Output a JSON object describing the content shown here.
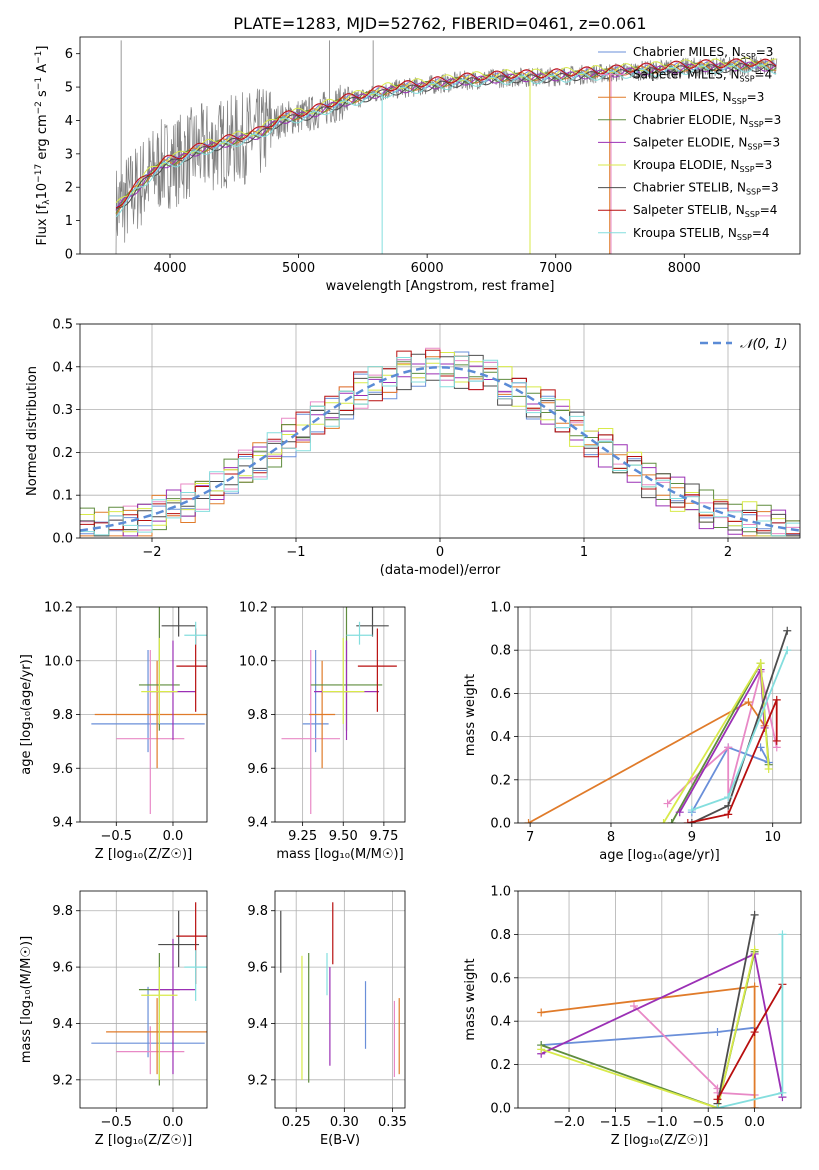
{
  "figure_title": "PLATE=1283, MJD=52762, FIBERID=0461, z=0.061",
  "models": [
    {
      "name": "Chabrier MILES",
      "n": "3",
      "color": "#6a8fd9"
    },
    {
      "name": "Salpeter MILES",
      "n": "4",
      "color": "#e889c6"
    },
    {
      "name": "Kroupa MILES",
      "n": "3",
      "color": "#e07b2a"
    },
    {
      "name": "Chabrier ELODIE",
      "n": "3",
      "color": "#5f8c3e"
    },
    {
      "name": "Salpeter ELODIE",
      "n": "3",
      "color": "#9b30b5"
    },
    {
      "name": "Kroupa ELODIE",
      "n": "3",
      "color": "#d8ea4a"
    },
    {
      "name": "Chabrier STELIB",
      "n": "3",
      "color": "#4d4d4d"
    },
    {
      "name": "Salpeter STELIB",
      "n": "4",
      "color": "#b80f0f"
    },
    {
      "name": "Kroupa STELIB",
      "n": "4",
      "color": "#84dede"
    }
  ],
  "legend_n_prefix": ", N",
  "legend_n_sub": "SSP",
  "legend_n_eq": "=",
  "gaussian_label": "𝒩(0, 1)",
  "chart_data": [
    {
      "id": "spectrum",
      "type": "line",
      "xlabel": "wavelength [Angstrom, rest frame]",
      "ylabel_parts": [
        "Flux [f",
        "λ",
        "10",
        "−17",
        " erg cm",
        "−2",
        " s",
        "−1",
        " A",
        "−1",
        "]"
      ],
      "xlim": [
        3300,
        8900
      ],
      "ylim": [
        0,
        6.5
      ],
      "xticks": [
        4000,
        5000,
        6000,
        7000,
        8000
      ],
      "yticks": [
        0,
        1,
        2,
        3,
        4,
        5,
        6
      ],
      "data_continuum": {
        "x": [
          3580,
          3650,
          3750,
          3850,
          3950,
          4050,
          4150,
          4300,
          4500,
          4700,
          4850,
          4950,
          5100,
          5300,
          5500,
          5700,
          5900,
          6100,
          6300,
          6500,
          6700,
          6900,
          7100,
          7300,
          7500,
          7700,
          7900,
          8100,
          8300,
          8500,
          8700
        ],
        "y": [
          1.3,
          1.6,
          2.0,
          2.4,
          2.7,
          2.8,
          3.0,
          3.2,
          3.4,
          3.6,
          4.0,
          4.1,
          4.2,
          4.5,
          4.7,
          4.9,
          5.0,
          5.1,
          5.2,
          5.25,
          5.3,
          5.3,
          5.35,
          5.4,
          5.45,
          5.5,
          5.55,
          5.6,
          5.6,
          5.65,
          5.6
        ]
      },
      "models_y_offset": [
        0.05,
        0.08,
        0.02,
        0.0,
        -0.02,
        0.12,
        -0.05,
        0.1,
        -0.08
      ]
    },
    {
      "id": "residuals",
      "type": "bar",
      "xlabel": "(data-model)/error",
      "ylabel": "Normed distribution",
      "xlim": [
        -2.5,
        2.5
      ],
      "ylim": [
        0,
        0.5
      ],
      "xticks": [
        -2,
        -1,
        0,
        1,
        2
      ],
      "yticks": [
        0.0,
        0.1,
        0.2,
        0.3,
        0.4,
        0.5
      ],
      "bins": [
        -2.5,
        -2.4,
        -2.3,
        -2.2,
        -2.1,
        -2.0,
        -1.9,
        -1.8,
        -1.7,
        -1.6,
        -1.5,
        -1.4,
        -1.3,
        -1.2,
        -1.1,
        -1.0,
        -0.9,
        -0.8,
        -0.7,
        -0.6,
        -0.5,
        -0.4,
        -0.3,
        -0.2,
        -0.1,
        0.0,
        0.1,
        0.2,
        0.3,
        0.4,
        0.5,
        0.6,
        0.7,
        0.8,
        0.9,
        1.0,
        1.1,
        1.2,
        1.3,
        1.4,
        1.5,
        1.6,
        1.7,
        1.8,
        1.9,
        2.0,
        2.1,
        2.2,
        2.3,
        2.4,
        2.5
      ],
      "bin_jitter": [
        0.01,
        -0.012,
        0.015,
        -0.008,
        0.02,
        -0.015,
        0.005,
        0.018,
        -0.02,
        0.01,
        0.035,
        -0.03,
        0.025,
        -0.02,
        0.04,
        -0.035,
        0.03,
        -0.025,
        0.045,
        -0.04,
        0.02,
        0.05,
        -0.03,
        0.04,
        -0.02,
        0.03,
        -0.04,
        0.02,
        -0.035,
        0.03,
        -0.02,
        0.045,
        -0.03,
        0.02,
        -0.04,
        0.035,
        -0.02,
        0.03,
        -0.025,
        0.02,
        -0.03,
        0.015,
        -0.02,
        0.025,
        -0.01,
        0.02,
        -0.015,
        0.01,
        -0.01,
        0.012
      ]
    },
    {
      "id": "age_vs_Z",
      "type": "scatter",
      "xlabel": "Z [log₁₀(Z/Z☉)]",
      "ylabel": "age  [log₁₀(age/yr)]",
      "xlim": [
        -0.82,
        0.3
      ],
      "ylim": [
        9.4,
        10.2
      ],
      "xticks": [
        -0.5,
        0.0
      ],
      "yticks": [
        9.4,
        9.6,
        9.8,
        10.0,
        10.2
      ],
      "points": [
        {
          "x": -0.22,
          "y": 9.765,
          "xerr": [
            0.5,
            0.5
          ],
          "yerr": [
            0.105,
            0.275
          ]
        },
        {
          "x": -0.2,
          "y": 9.71,
          "xerr": [
            0.3,
            0.3
          ],
          "yerr": [
            0.28,
            0.33
          ]
        },
        {
          "x": -0.14,
          "y": 9.8,
          "xerr": [
            0.55,
            0.55
          ],
          "yerr": [
            0.2,
            0.2
          ]
        },
        {
          "x": -0.12,
          "y": 9.91,
          "xerr": [
            0.18,
            0.18
          ],
          "yerr": [
            0.17,
            0.33
          ]
        },
        {
          "x": 0.0,
          "y": 9.885,
          "xerr": [
            0.2,
            0.2
          ],
          "yerr": [
            0.18,
            0.19
          ]
        },
        {
          "x": -0.12,
          "y": 9.885,
          "xerr": [
            0.16,
            0.16
          ],
          "yerr": [
            0.12,
            0.2
          ]
        },
        {
          "x": 0.05,
          "y": 10.13,
          "xerr": [
            0.15,
            0.15
          ],
          "yerr": [
            0.04,
            0.13
          ]
        },
        {
          "x": 0.2,
          "y": 9.98,
          "xerr": [
            0.17,
            0.1
          ],
          "yerr": [
            0.17,
            0.14
          ]
        },
        {
          "x": 0.2,
          "y": 10.095,
          "xerr": [
            0.1,
            0.1
          ],
          "yerr": [
            0.035,
            0.05
          ]
        }
      ]
    },
    {
      "id": "age_vs_mass",
      "type": "scatter",
      "xlabel": "mass [log₁₀(M/M☉)]",
      "ylabel": "",
      "xlim": [
        9.08,
        9.88
      ],
      "ylim": [
        9.4,
        10.2
      ],
      "xticks": [
        9.25,
        9.5,
        9.75
      ],
      "yticks": [
        9.4,
        9.6,
        9.8,
        10.0,
        10.2
      ],
      "points": [
        {
          "x": 9.33,
          "y": 9.765,
          "xerr": [
            0.08,
            0.08
          ],
          "yerr": [
            0.105,
            0.275
          ]
        },
        {
          "x": 9.3,
          "y": 9.71,
          "xerr": [
            0.18,
            0.18
          ],
          "yerr": [
            0.28,
            0.33
          ]
        },
        {
          "x": 9.37,
          "y": 9.8,
          "xerr": [
            0.08,
            0.08
          ],
          "yerr": [
            0.2,
            0.2
          ]
        },
        {
          "x": 9.52,
          "y": 9.91,
          "xerr": [
            0.22,
            0.22
          ],
          "yerr": [
            0.17,
            0.33
          ]
        },
        {
          "x": 9.52,
          "y": 9.885,
          "xerr": [
            0.2,
            0.2
          ],
          "yerr": [
            0.18,
            0.19
          ]
        },
        {
          "x": 9.5,
          "y": 9.885,
          "xerr": [
            0.13,
            0.13
          ],
          "yerr": [
            0.12,
            0.2
          ]
        },
        {
          "x": 9.68,
          "y": 10.13,
          "xerr": [
            0.1,
            0.1
          ],
          "yerr": [
            0.04,
            0.13
          ]
        },
        {
          "x": 9.71,
          "y": 9.98,
          "xerr": [
            0.12,
            0.12
          ],
          "yerr": [
            0.17,
            0.14
          ]
        },
        {
          "x": 9.6,
          "y": 10.095,
          "xerr": [
            0.08,
            0.08
          ],
          "yerr": [
            0.035,
            0.05
          ]
        }
      ]
    },
    {
      "id": "weight_vs_age",
      "type": "line",
      "xlabel": "age  [log₁₀(age/yr)]",
      "ylabel": "mass weight",
      "xlim": [
        6.85,
        10.35
      ],
      "ylim": [
        0,
        1.0
      ],
      "xticks": [
        7,
        8,
        9,
        10
      ],
      "yticks": [
        0.0,
        0.2,
        0.4,
        0.6,
        0.8,
        1.0
      ],
      "series": [
        {
          "x": [
            9.0,
            9.45,
            9.95,
            9.85
          ],
          "y": [
            0.05,
            0.35,
            0.28,
            0.35
          ]
        },
        {
          "x": [
            8.7,
            9.0,
            9.45,
            9.45,
            9.85,
            10.05
          ],
          "y": [
            0.09,
            0.2,
            0.35,
            0.12,
            0.7,
            0.35
          ]
        },
        {
          "x": [
            6.98,
            9.7,
            9.9
          ],
          "y": [
            0.0,
            0.56,
            0.45
          ]
        },
        {
          "x": [
            8.75,
            9.85,
            9.95
          ],
          "y": [
            0.0,
            0.74,
            0.27
          ]
        },
        {
          "x": [
            8.85,
            9.85,
            9.9
          ],
          "y": [
            0.05,
            0.71,
            0.44
          ]
        },
        {
          "x": [
            8.65,
            9.85,
            9.95
          ],
          "y": [
            0.0,
            0.74,
            0.25
          ]
        },
        {
          "x": [
            9.0,
            9.45,
            10.18
          ],
          "y": [
            0.0,
            0.08,
            0.89
          ]
        },
        {
          "x": [
            8.95,
            9.45,
            10.05,
            10.05
          ],
          "y": [
            0.0,
            0.04,
            0.57,
            0.38
          ]
        },
        {
          "x": [
            9.0,
            9.45,
            10.18
          ],
          "y": [
            0.06,
            0.12,
            0.8
          ]
        }
      ]
    },
    {
      "id": "mass_vs_Z",
      "type": "scatter",
      "xlabel": "Z [log₁₀(Z/Z☉)]",
      "ylabel": "mass [log₁₀(M/M☉)]",
      "xlim": [
        -0.82,
        0.3
      ],
      "ylim": [
        9.1,
        9.87
      ],
      "xticks": [
        -0.5,
        0.0
      ],
      "yticks": [
        9.2,
        9.4,
        9.6,
        9.8
      ],
      "points": [
        {
          "x": -0.22,
          "y": 9.33,
          "xerr": [
            0.5,
            0.5
          ],
          "yerr": [
            0.05,
            0.2
          ]
        },
        {
          "x": -0.2,
          "y": 9.3,
          "xerr": [
            0.3,
            0.3
          ],
          "yerr": [
            0.08,
            0.09
          ]
        },
        {
          "x": -0.14,
          "y": 9.37,
          "xerr": [
            0.45,
            0.45
          ],
          "yerr": [
            0.15,
            0.12
          ]
        },
        {
          "x": -0.12,
          "y": 9.52,
          "xerr": [
            0.18,
            0.18
          ],
          "yerr": [
            0.34,
            0.13
          ]
        },
        {
          "x": 0.0,
          "y": 9.52,
          "xerr": [
            0.2,
            0.2
          ],
          "yerr": [
            0.3,
            0.18
          ]
        },
        {
          "x": -0.12,
          "y": 9.5,
          "xerr": [
            0.16,
            0.16
          ],
          "yerr": [
            0.3,
            0.1
          ]
        },
        {
          "x": 0.05,
          "y": 9.68,
          "xerr": [
            0.18,
            0.18
          ],
          "yerr": [
            0.08,
            0.12
          ]
        },
        {
          "x": 0.2,
          "y": 9.71,
          "xerr": [
            0.17,
            0.1
          ],
          "yerr": [
            0.17,
            0.12
          ]
        },
        {
          "x": 0.2,
          "y": 9.6,
          "xerr": [
            0.1,
            0.1
          ],
          "yerr": [
            0.12,
            0.06
          ]
        }
      ]
    },
    {
      "id": "mass_vs_ebv",
      "type": "scatter",
      "xlabel": "E(B-V)",
      "ylabel": "",
      "xlim": [
        0.228,
        0.363
      ],
      "ylim": [
        9.1,
        9.87
      ],
      "xticks": [
        0.25,
        0.3,
        0.35
      ],
      "yticks": [
        9.2,
        9.4,
        9.6,
        9.8
      ],
      "points": [
        {
          "x": 0.322,
          "y": 9.43,
          "yerr": [
            0.12,
            0.12
          ]
        },
        {
          "x": 0.352,
          "y": 9.34,
          "yerr": [
            0.13,
            0.14
          ]
        },
        {
          "x": 0.357,
          "y": 9.35,
          "yerr": [
            0.13,
            0.14
          ]
        },
        {
          "x": 0.263,
          "y": 9.42,
          "yerr": [
            0.23,
            0.23
          ]
        },
        {
          "x": 0.285,
          "y": 9.42,
          "yerr": [
            0.17,
            0.18
          ]
        },
        {
          "x": 0.256,
          "y": 9.42,
          "yerr": [
            0.22,
            0.22
          ]
        },
        {
          "x": 0.234,
          "y": 9.69,
          "yerr": [
            0.11,
            0.11
          ]
        },
        {
          "x": 0.288,
          "y": 9.72,
          "yerr": [
            0.11,
            0.11
          ]
        },
        {
          "x": 0.282,
          "y": 9.57,
          "yerr": [
            0.07,
            0.08
          ]
        }
      ]
    },
    {
      "id": "weight_vs_Z",
      "type": "line",
      "xlabel": "Z [log₁₀(Z/Z☉)]",
      "ylabel": "mass weight",
      "xlim": [
        -2.55,
        0.5
      ],
      "ylim": [
        0,
        1.0
      ],
      "xticks": [
        -2.0,
        -1.5,
        -1.0,
        -0.5,
        0.0
      ],
      "yticks": [
        0.0,
        0.2,
        0.4,
        0.6,
        0.8,
        1.0
      ],
      "series": [
        {
          "x": [
            -2.3,
            -0.4,
            0.0
          ],
          "y": [
            0.29,
            0.35,
            0.37
          ]
        },
        {
          "x": [
            -1.3,
            -0.4,
            -0.4,
            0.0
          ],
          "y": [
            0.47,
            0.09,
            0.07,
            0.06
          ]
        },
        {
          "x": [
            -2.3,
            0.0,
            0.0
          ],
          "y": [
            0.44,
            0.56,
            0.0
          ]
        },
        {
          "x": [
            -2.3,
            -0.4,
            0.0
          ],
          "y": [
            0.29,
            0.0,
            0.72
          ]
        },
        {
          "x": [
            -2.3,
            0.0,
            0.3
          ],
          "y": [
            0.25,
            0.71,
            0.05
          ]
        },
        {
          "x": [
            -2.3,
            -0.4,
            0.0
          ],
          "y": [
            0.27,
            0.0,
            0.73
          ]
        },
        {
          "x": [
            -0.4,
            0.0
          ],
          "y": [
            0.02,
            0.89
          ]
        },
        {
          "x": [
            -0.4,
            0.0,
            0.3
          ],
          "y": [
            0.04,
            0.35,
            0.57
          ]
        },
        {
          "x": [
            -0.4,
            0.3,
            0.3
          ],
          "y": [
            0.0,
            0.07,
            0.8
          ]
        }
      ]
    }
  ]
}
